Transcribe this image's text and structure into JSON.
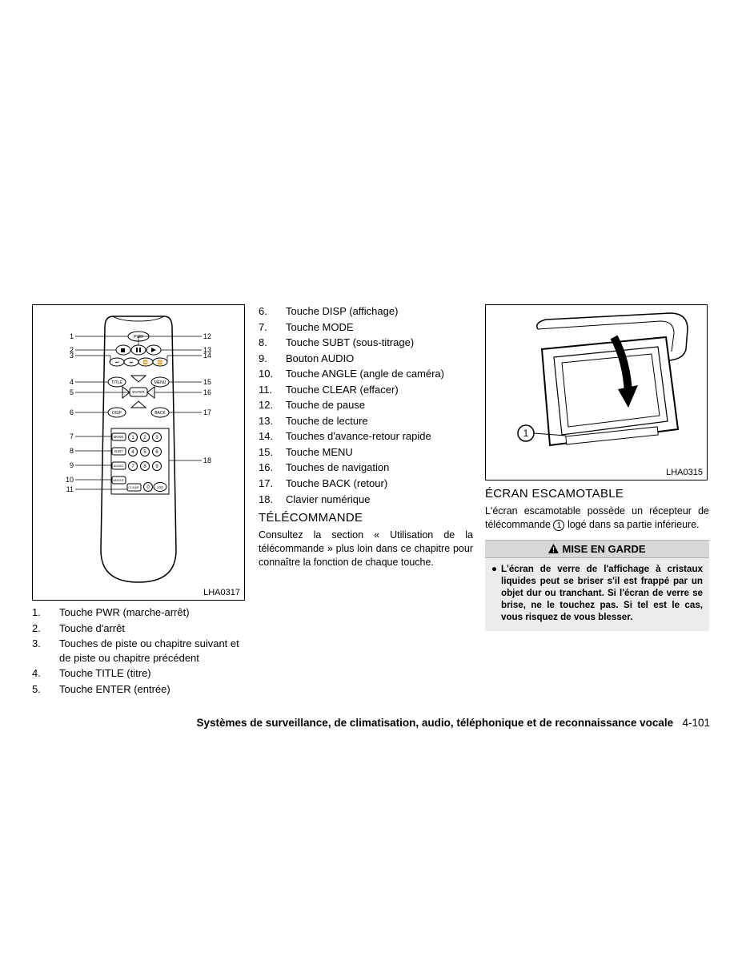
{
  "figure1": {
    "code": "LHA0317"
  },
  "figure2": {
    "code": "LHA0315"
  },
  "list_col1": [
    {
      "n": "1.",
      "t": "Touche PWR (marche-arrêt)"
    },
    {
      "n": "2.",
      "t": "Touche d'arrêt"
    },
    {
      "n": "3.",
      "t": "Touches de piste ou chapitre suivant et de piste ou chapitre précédent"
    },
    {
      "n": "4.",
      "t": "Touche TITLE (titre)"
    },
    {
      "n": "5.",
      "t": "Touche ENTER (entrée)"
    }
  ],
  "list_col2": [
    {
      "n": "6.",
      "t": "Touche DISP (affichage)"
    },
    {
      "n": "7.",
      "t": "Touche MODE"
    },
    {
      "n": "8.",
      "t": "Touche SUBT (sous-titrage)"
    },
    {
      "n": "9.",
      "t": "Bouton AUDIO"
    },
    {
      "n": "10.",
      "t": "Touche ANGLE (angle de caméra)"
    },
    {
      "n": "11.",
      "t": "Touche CLEAR (effacer)"
    },
    {
      "n": "12.",
      "t": "Touche de pause"
    },
    {
      "n": "13.",
      "t": "Touche de lecture"
    },
    {
      "n": "14.",
      "t": "Touches d'avance-retour rapide"
    },
    {
      "n": "15.",
      "t": "Touche MENU"
    },
    {
      "n": "16.",
      "t": "Touches de navigation"
    },
    {
      "n": "17.",
      "t": "Touche BACK (retour)"
    },
    {
      "n": "18.",
      "t": "Clavier numérique"
    }
  ],
  "heading1": "TÉLÉCOMMANDE",
  "para1": "Consultez la section « Utilisation de la télécommande » plus loin dans ce chapitre pour connaître la fonction de chaque touche.",
  "heading2": "ÉCRAN ESCAMOTABLE",
  "para2_a": "L'écran escamotable possède un récepteur de télécommande ",
  "para2_b": " logé dans sa partie inférieure.",
  "circled_1": "1",
  "warning_title": "MISE EN GARDE",
  "warning_body": "L'écran de verre de l'affichage à cristaux liquides peut se briser s'il est frappé par un objet dur ou tranchant. Si l'écran de verre se brise, ne le touchez pas. Si tel est le cas, vous risquez de vous blesser.",
  "footer_bold": "Systèmes de surveillance, de climatisation, audio, téléphonique et de reconnaissance vocale",
  "footer_page": "4-101",
  "remote_labels": {
    "pwr": "PWR",
    "title": "TITLE",
    "menu": "MENU",
    "enter": "ENTER",
    "disp": "DISP",
    "back": "BACK",
    "mode": "MODE",
    "subt": "SUBT",
    "audio": "AUDIO",
    "angle": "ANGLE",
    "clear": "CLEAR"
  },
  "callouts_left": [
    "1",
    "2",
    "3",
    "4",
    "5",
    "6",
    "7",
    "8",
    "9",
    "10",
    "11"
  ],
  "callouts_right": [
    "12",
    "13",
    "14",
    "15",
    "16",
    "17",
    "18"
  ]
}
